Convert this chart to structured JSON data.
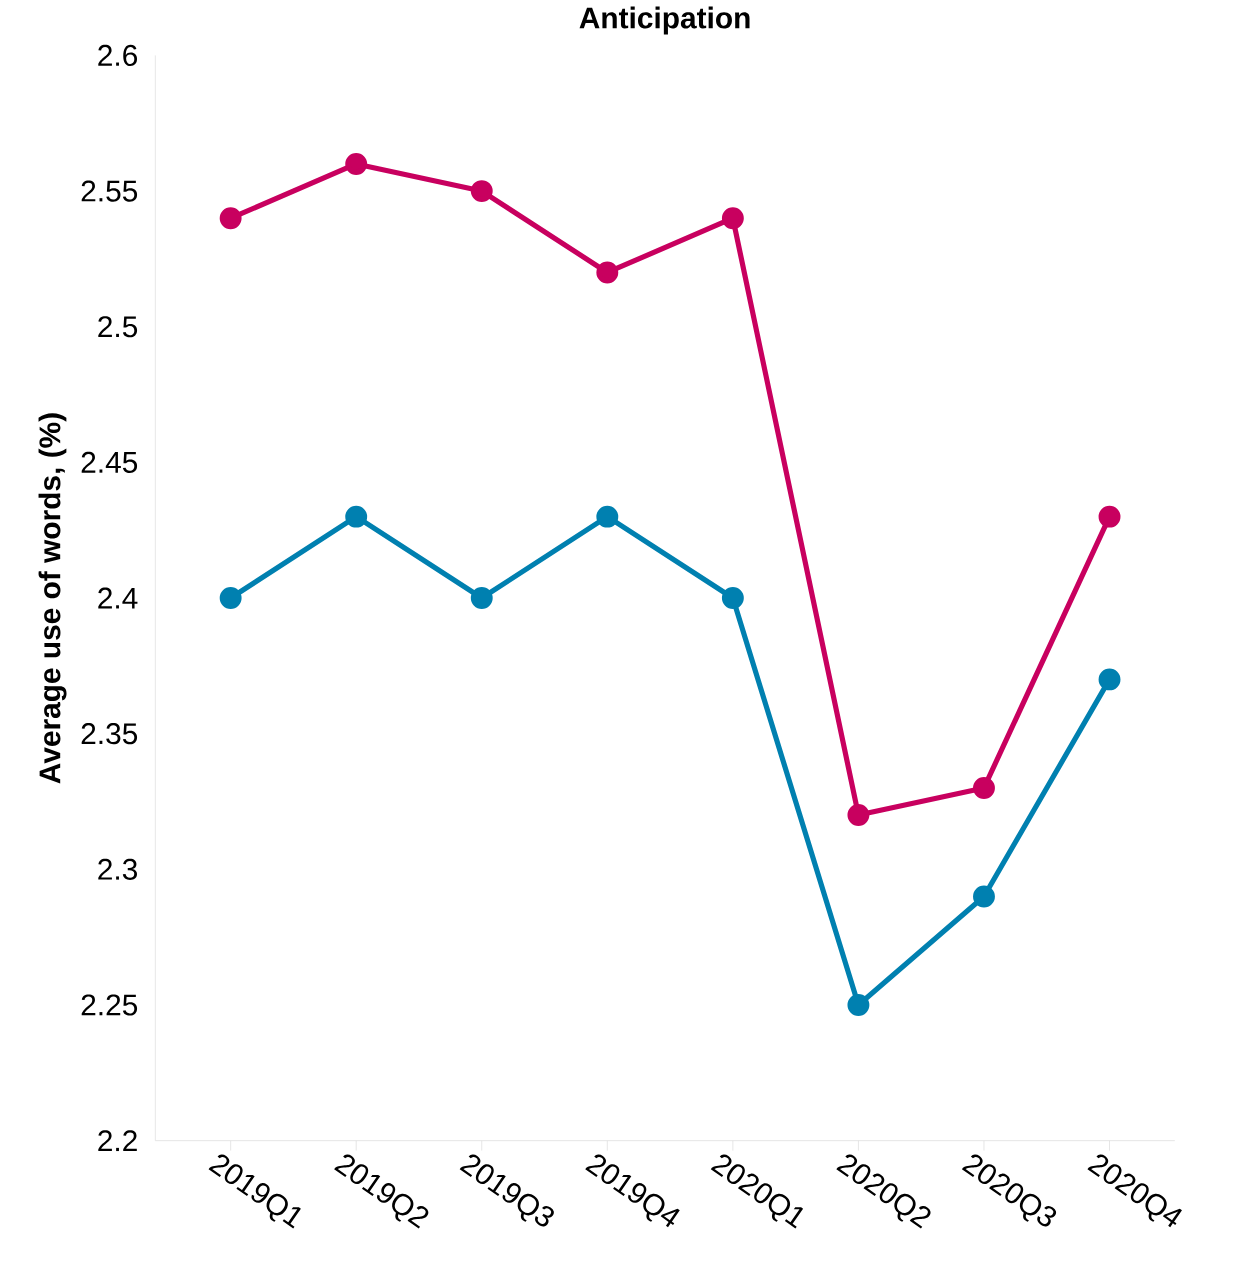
{
  "chart_data": {
    "type": "line",
    "title": "Anticipation",
    "ylabel": "Average use of words, (%)",
    "categories": [
      "2019Q1",
      "2019Q2",
      "2019Q3",
      "2019Q4",
      "2020Q1",
      "2020Q2",
      "2020Q3",
      "2020Q4"
    ],
    "series": [
      {
        "color": "#c8005f",
        "values": [
          2.54,
          2.56,
          2.55,
          2.52,
          2.54,
          2.32,
          2.33,
          2.43
        ]
      },
      {
        "color": "#0080b0",
        "values": [
          2.4,
          2.43,
          2.4,
          2.43,
          2.4,
          2.25,
          2.29,
          2.37
        ]
      }
    ],
    "ylim": [
      2.2,
      2.6
    ],
    "yticks": [
      2.2,
      2.25,
      2.3,
      2.35,
      2.4,
      2.45,
      2.5,
      2.55,
      2.6
    ],
    "grid": false,
    "marker": "circle",
    "line_style": "solid"
  }
}
